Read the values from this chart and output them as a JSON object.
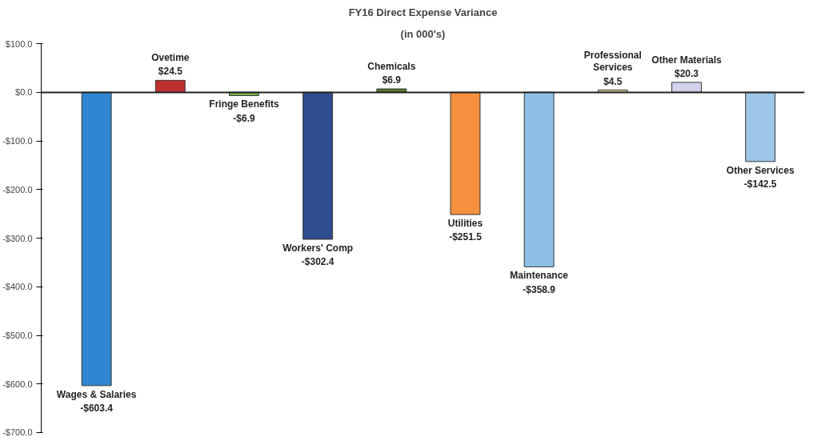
{
  "chart_data": {
    "type": "bar",
    "title": "FY16 Direct Expense Variance",
    "subtitle": "(in 000's)",
    "categories": [
      "Wages & Salaries",
      "Ovetime",
      "Fringe Benefits",
      "Workers' Comp",
      "Chemicals",
      "Utilities",
      "Maintenance",
      "Professional Services",
      "Other Materials",
      "Other Services"
    ],
    "values": [
      -603.4,
      24.5,
      -6.9,
      -302.4,
      6.9,
      -251.5,
      -358.9,
      4.5,
      20.3,
      -142.5
    ],
    "value_labels": [
      "-$603.4",
      "$24.5",
      "-$6.9",
      "-$302.4",
      "$6.9",
      "-$251.5",
      "-$358.9",
      "$4.5",
      "$20.3",
      "-$142.5"
    ],
    "colors": [
      "#2f86d2",
      "#c0312e",
      "#7cb44a",
      "#2f4c8c",
      "#5a7a2e",
      "#f4903e",
      "#8ec0e6",
      "#e8d8a8",
      "#d2d2ee",
      "#9dc6e8"
    ],
    "ylim": [
      -700,
      100
    ],
    "yticks": [
      {
        "value": 100,
        "label": "$100.0"
      },
      {
        "value": 0,
        "label": "$0.0"
      },
      {
        "value": -100,
        "label": "-$100.0"
      },
      {
        "value": -200,
        "label": "-$200.0"
      },
      {
        "value": -300,
        "label": "-$300.0"
      },
      {
        "value": -400,
        "label": "-$400.0"
      },
      {
        "value": -500,
        "label": "-$500.0"
      },
      {
        "value": -600,
        "label": "-$600.0"
      },
      {
        "value": -700,
        "label": "-$700.0"
      }
    ]
  }
}
